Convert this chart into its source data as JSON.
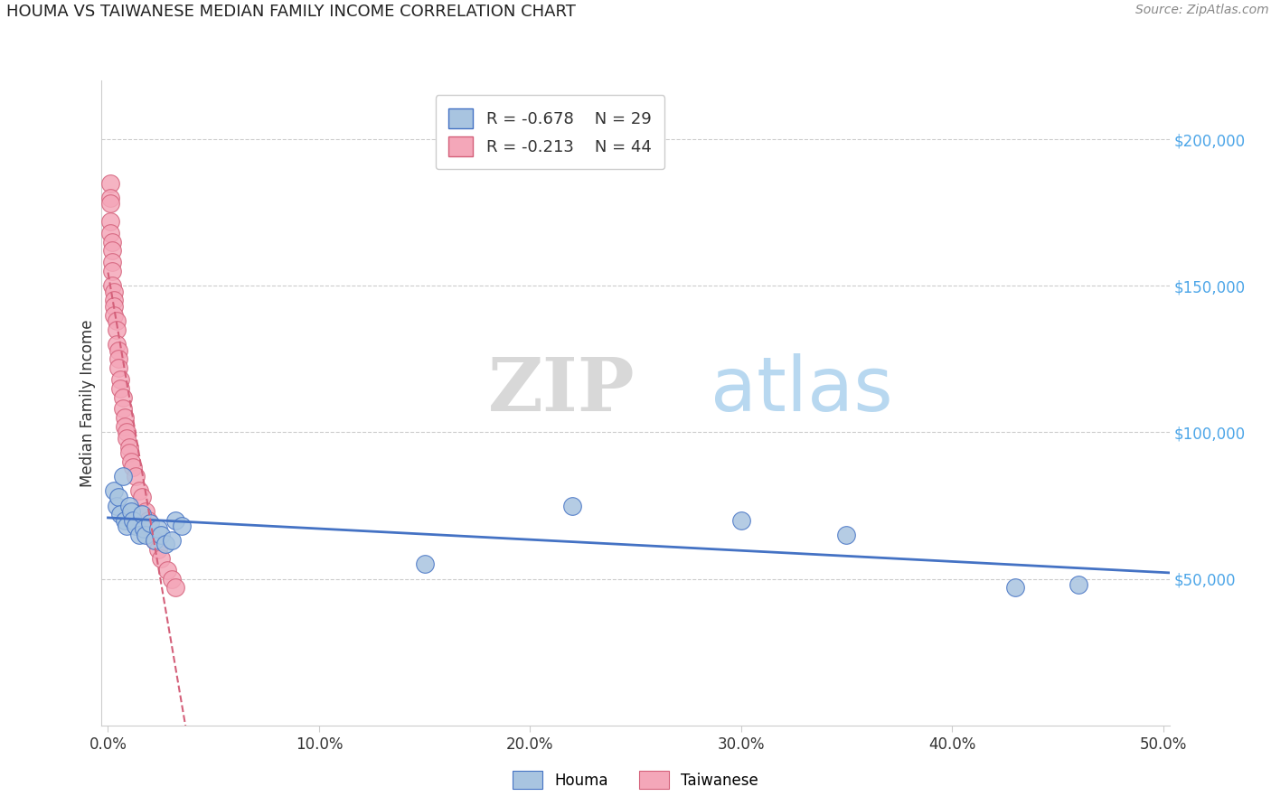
{
  "title": "HOUMA VS TAIWANESE MEDIAN FAMILY INCOME CORRELATION CHART",
  "source": "Source: ZipAtlas.com",
  "ylabel": "Median Family Income",
  "xlabel_ticks": [
    "0.0%",
    "10.0%",
    "20.0%",
    "30.0%",
    "40.0%",
    "50.0%"
  ],
  "xlabel_vals": [
    0.0,
    0.1,
    0.2,
    0.3,
    0.4,
    0.5
  ],
  "ytick_labels": [
    "$50,000",
    "$100,000",
    "$150,000",
    "$200,000"
  ],
  "ytick_vals": [
    50000,
    100000,
    150000,
    200000
  ],
  "xlim": [
    -0.003,
    0.503
  ],
  "ylim": [
    0,
    220000
  ],
  "houma_R": -0.678,
  "houma_N": 29,
  "taiwanese_R": -0.213,
  "taiwanese_N": 44,
  "houma_color": "#a8c4e0",
  "houma_line_color": "#4472c4",
  "taiwanese_color": "#f4a7b9",
  "taiwanese_line_color": "#d4607a",
  "houma_x": [
    0.003,
    0.004,
    0.005,
    0.006,
    0.007,
    0.008,
    0.009,
    0.01,
    0.011,
    0.012,
    0.013,
    0.015,
    0.016,
    0.017,
    0.018,
    0.02,
    0.022,
    0.024,
    0.025,
    0.027,
    0.03,
    0.032,
    0.035,
    0.15,
    0.22,
    0.3,
    0.35,
    0.43,
    0.46
  ],
  "houma_y": [
    80000,
    75000,
    78000,
    72000,
    85000,
    70000,
    68000,
    75000,
    73000,
    70000,
    68000,
    65000,
    72000,
    67000,
    65000,
    69000,
    63000,
    67000,
    65000,
    62000,
    63000,
    70000,
    68000,
    55000,
    75000,
    70000,
    65000,
    47000,
    48000
  ],
  "taiwanese_x": [
    0.001,
    0.001,
    0.001,
    0.001,
    0.001,
    0.002,
    0.002,
    0.002,
    0.002,
    0.002,
    0.003,
    0.003,
    0.003,
    0.003,
    0.004,
    0.004,
    0.004,
    0.005,
    0.005,
    0.005,
    0.006,
    0.006,
    0.007,
    0.007,
    0.008,
    0.008,
    0.009,
    0.009,
    0.01,
    0.01,
    0.011,
    0.012,
    0.013,
    0.015,
    0.016,
    0.018,
    0.019,
    0.02,
    0.022,
    0.024,
    0.025,
    0.028,
    0.03,
    0.032
  ],
  "taiwanese_y": [
    185000,
    180000,
    178000,
    172000,
    168000,
    165000,
    162000,
    158000,
    155000,
    150000,
    148000,
    145000,
    143000,
    140000,
    138000,
    135000,
    130000,
    128000,
    125000,
    122000,
    118000,
    115000,
    112000,
    108000,
    105000,
    102000,
    100000,
    98000,
    95000,
    93000,
    90000,
    88000,
    85000,
    80000,
    78000,
    73000,
    70000,
    67000,
    63000,
    60000,
    57000,
    53000,
    50000,
    47000
  ],
  "watermark_zip": "ZIP",
  "watermark_atlas": "atlas",
  "background_color": "#ffffff",
  "grid_color": "#cccccc",
  "right_yaxis_color": "#4da6e8"
}
